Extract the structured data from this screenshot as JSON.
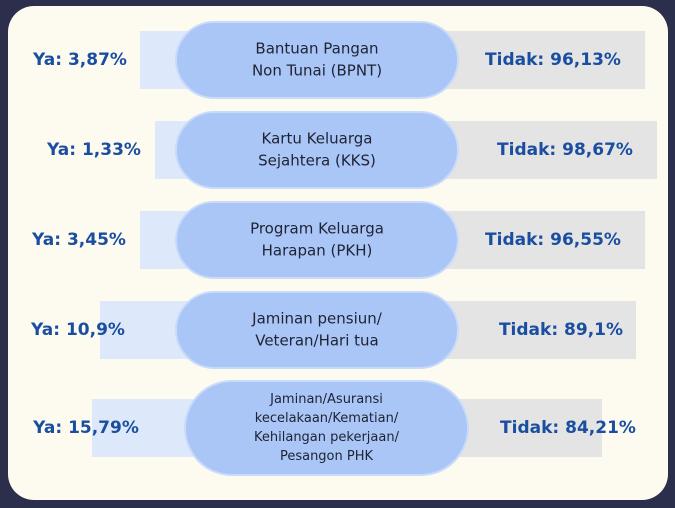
{
  "chart_data": {
    "type": "split-label",
    "categories": [
      [
        "Bantuan Pangan",
        "Non Tunai (BPNT)"
      ],
      [
        "Kartu Keluarga",
        "Sejahtera (KKS)"
      ],
      [
        "Program Keluarga",
        "Harapan (PKH)"
      ],
      [
        "Jaminan pensiun/",
        "Veteran/Hari tua"
      ],
      [
        "Jaminan/Asuransi",
        "kecelakaan/Kematian/",
        "Kehilangan pekerjaan/",
        "Pesangon PHK"
      ]
    ],
    "ya": {
      "color": "#dde9fb",
      "values": [
        3.87,
        1.33,
        3.45,
        10.9,
        15.79
      ],
      "value_labels": [
        "Ya: 3,87%",
        "Ya: 1,33%",
        "Ya: 3,45%",
        "Ya: 10,9%",
        "Ya: 15,79%"
      ]
    },
    "tidak": {
      "color": "#e4e4e4",
      "values": [
        96.13,
        98.67,
        96.55,
        89.1,
        84.21
      ],
      "value_labels": [
        "Tidak: 96,13%",
        "Tidak: 98,67%",
        "Tidak: 96,55%",
        "Tidak: 89,1%",
        "Tidak: 84,21%"
      ]
    },
    "pill_color": "#a9c6f7",
    "label_color": "#1a4ea0"
  }
}
